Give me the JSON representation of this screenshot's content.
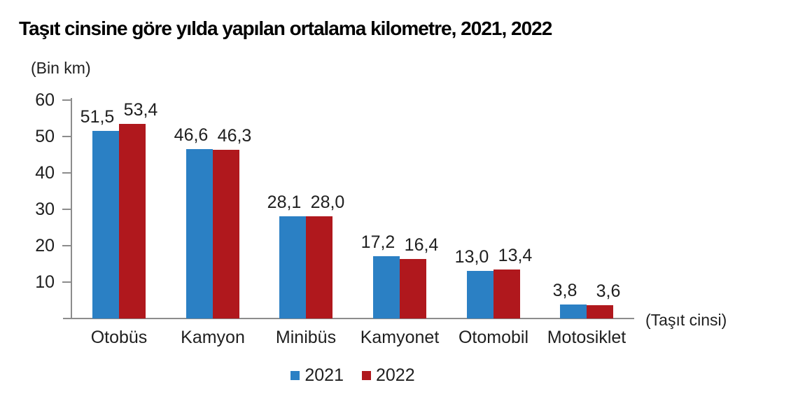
{
  "title": "Taşıt cinsine göre yılda yapılan ortalama kilometre, 2021, 2022",
  "y_unit_label": "(Bin km)",
  "x_axis_label": "(Taşıt cinsi)",
  "colors": {
    "series_2021": "#2b80c4",
    "series_2022": "#b0181d",
    "axis": "#8c8c8c",
    "text": "#1f1f1f"
  },
  "legend": [
    {
      "label": "2021",
      "color": "#2b80c4"
    },
    {
      "label": "2022",
      "color": "#b0181d"
    }
  ],
  "chart_data": {
    "type": "bar",
    "title": "Taşıt cinsine göre yılda yapılan ortalama kilometre, 2021, 2022",
    "categories": [
      "Otobüs",
      "Kamyon",
      "Minibüs",
      "Kamyonet",
      "Otomobil",
      "Motosiklet"
    ],
    "series": [
      {
        "name": "2021",
        "color": "#2b80c4",
        "values": [
          51.5,
          46.6,
          28.1,
          17.2,
          13.0,
          3.8
        ],
        "labels": [
          "51,5",
          "46,6",
          "28,1",
          "17,2",
          "13,0",
          "3,8"
        ]
      },
      {
        "name": "2022",
        "color": "#b0181d",
        "values": [
          53.4,
          46.3,
          28.0,
          16.4,
          13.4,
          3.6
        ],
        "labels": [
          "53,4",
          "46,3",
          "28,0",
          "16,4",
          "13,4",
          "3,6"
        ]
      }
    ],
    "xlabel": "(Taşıt cinsi)",
    "ylabel": "(Bin km)",
    "ylim": [
      0,
      60
    ],
    "yticks": [
      10,
      20,
      30,
      40,
      50,
      60
    ],
    "grid": false,
    "legend_position": "bottom",
    "value_labels_shown": true
  }
}
